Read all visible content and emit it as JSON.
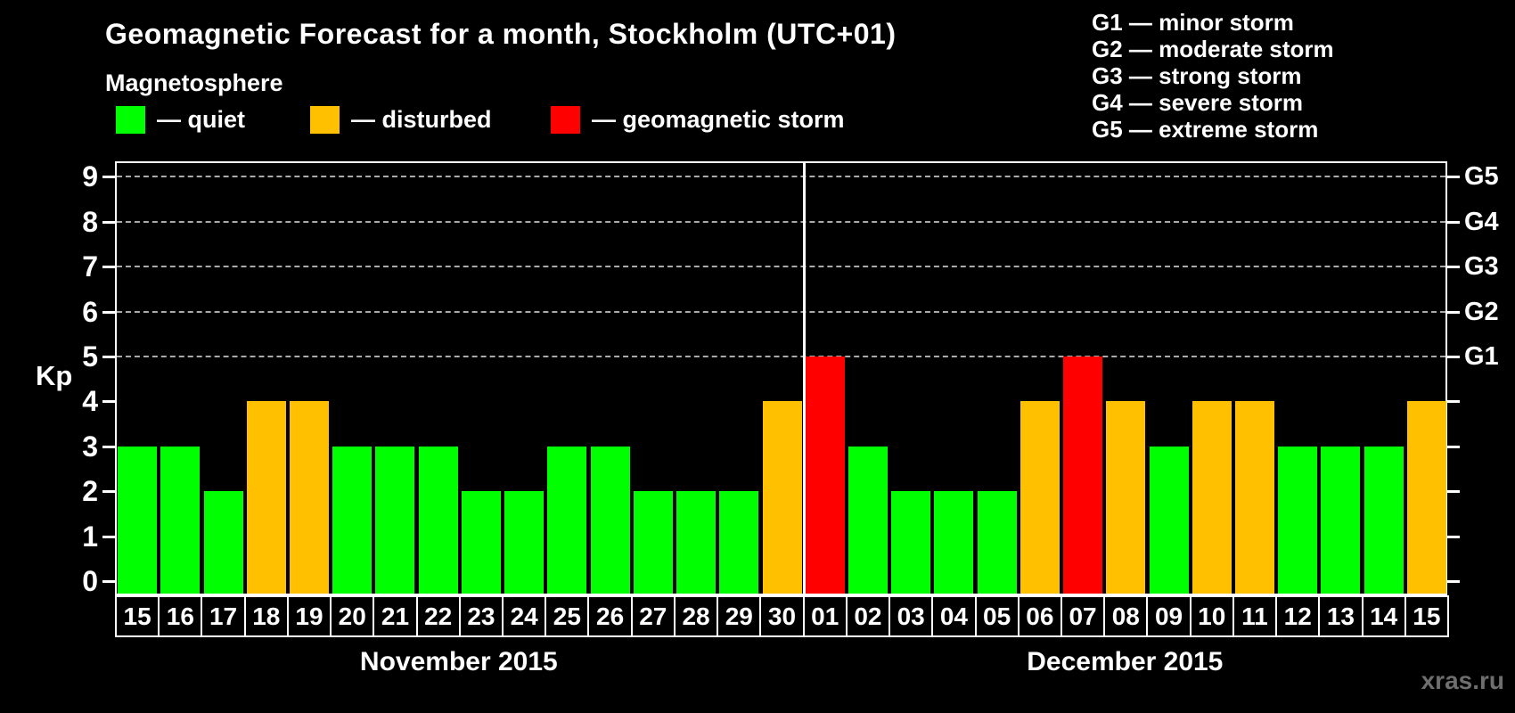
{
  "header": {
    "title": "Geomagnetic Forecast for a month, Stockholm (UTC+01)",
    "subtitle": "Magnetosphere"
  },
  "legend": {
    "items": [
      {
        "key": "quiet",
        "label": "— quiet",
        "color": "#00ff00"
      },
      {
        "key": "disturbed",
        "label": "— disturbed",
        "color": "#ffc000"
      },
      {
        "key": "storm",
        "label": "— geomagnetic storm",
        "color": "#ff0000"
      }
    ]
  },
  "gscale_legend": {
    "items": [
      "G1 — minor storm",
      "G2 — moderate storm",
      "G3 — strong storm",
      "G4 — severe storm",
      "G5 — extreme storm"
    ]
  },
  "chart_data": {
    "type": "bar",
    "title": "Geomagnetic Forecast for a month, Stockholm (UTC+01)",
    "ylabel": "Kp",
    "ylim": [
      0,
      9.3
    ],
    "yticks": [
      0,
      1,
      2,
      3,
      4,
      5,
      6,
      7,
      8,
      9
    ],
    "gridlines_at": [
      5,
      6,
      7,
      8,
      9
    ],
    "grid": "horizontal dashed lines at Kp 5-9 (G-storm levels)",
    "legend_position": "top",
    "right_axis_labels": [
      {
        "label": "G1",
        "kp": 5
      },
      {
        "label": "G2",
        "kp": 6
      },
      {
        "label": "G3",
        "kp": 7
      },
      {
        "label": "G4",
        "kp": 8
      },
      {
        "label": "G5",
        "kp": 9
      }
    ],
    "state_colors": {
      "quiet": "#00ff00",
      "disturbed": "#ffc000",
      "storm": "#ff0000"
    },
    "months": [
      {
        "label": "November 2015",
        "days": [
          {
            "day": "15",
            "kp": 3,
            "state": "quiet"
          },
          {
            "day": "16",
            "kp": 3,
            "state": "quiet"
          },
          {
            "day": "17",
            "kp": 2,
            "state": "quiet"
          },
          {
            "day": "18",
            "kp": 4,
            "state": "disturbed"
          },
          {
            "day": "19",
            "kp": 4,
            "state": "disturbed"
          },
          {
            "day": "20",
            "kp": 3,
            "state": "quiet"
          },
          {
            "day": "21",
            "kp": 3,
            "state": "quiet"
          },
          {
            "day": "22",
            "kp": 3,
            "state": "quiet"
          },
          {
            "day": "23",
            "kp": 2,
            "state": "quiet"
          },
          {
            "day": "24",
            "kp": 2,
            "state": "quiet"
          },
          {
            "day": "25",
            "kp": 3,
            "state": "quiet"
          },
          {
            "day": "26",
            "kp": 3,
            "state": "quiet"
          },
          {
            "day": "27",
            "kp": 2,
            "state": "quiet"
          },
          {
            "day": "28",
            "kp": 2,
            "state": "quiet"
          },
          {
            "day": "29",
            "kp": 2,
            "state": "quiet"
          },
          {
            "day": "30",
            "kp": 4,
            "state": "disturbed"
          }
        ]
      },
      {
        "label": "December 2015",
        "days": [
          {
            "day": "01",
            "kp": 5,
            "state": "storm"
          },
          {
            "day": "02",
            "kp": 3,
            "state": "quiet"
          },
          {
            "day": "03",
            "kp": 2,
            "state": "quiet"
          },
          {
            "day": "04",
            "kp": 2,
            "state": "quiet"
          },
          {
            "day": "05",
            "kp": 2,
            "state": "quiet"
          },
          {
            "day": "06",
            "kp": 4,
            "state": "disturbed"
          },
          {
            "day": "07",
            "kp": 5,
            "state": "storm"
          },
          {
            "day": "08",
            "kp": 4,
            "state": "disturbed"
          },
          {
            "day": "09",
            "kp": 3,
            "state": "quiet"
          },
          {
            "day": "10",
            "kp": 4,
            "state": "disturbed"
          },
          {
            "day": "11",
            "kp": 4,
            "state": "disturbed"
          },
          {
            "day": "12",
            "kp": 3,
            "state": "quiet"
          },
          {
            "day": "13",
            "kp": 3,
            "state": "quiet"
          },
          {
            "day": "14",
            "kp": 3,
            "state": "quiet"
          },
          {
            "day": "15",
            "kp": 4,
            "state": "disturbed"
          }
        ]
      }
    ]
  },
  "watermark": "xras.ru"
}
